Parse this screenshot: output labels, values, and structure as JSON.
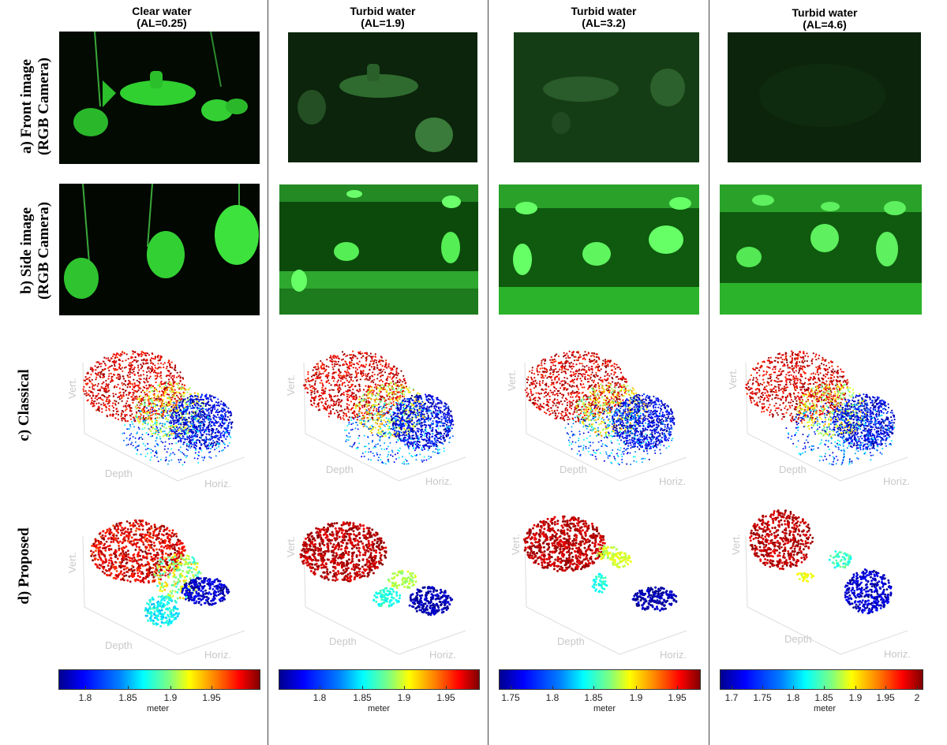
{
  "columns": [
    {
      "title": "Clear water",
      "al": "(AL=0.25)",
      "ticks": [
        "1.8",
        "1.85",
        "1.9",
        "1.95"
      ],
      "cbar_unit": "meter"
    },
    {
      "title": "Turbid water",
      "al": "(AL=1.9)",
      "ticks": [
        "1.8",
        "1.85",
        "1.9",
        "1.95"
      ],
      "cbar_unit": "meter"
    },
    {
      "title": "Turbid water",
      "al": "(AL=3.2)",
      "ticks": [
        "1.75",
        "1.8",
        "1.85",
        "1.9",
        "1.95"
      ],
      "cbar_unit": "meter"
    },
    {
      "title": "Turbid water",
      "al": "(AL=4.6)",
      "ticks": [
        "1.7",
        "1.75",
        "1.8",
        "1.85",
        "1.9",
        "1.95",
        "2"
      ],
      "cbar_unit": "meter"
    }
  ],
  "rows": {
    "a": {
      "line1": "a) Front image",
      "line2": "(RGB Camera)"
    },
    "b": {
      "line1": "b) Side image",
      "line2": "(RGB Camera)"
    },
    "c": {
      "line1": "c) Classical"
    },
    "d": {
      "line1": "d) Proposed"
    }
  },
  "axis_labels": {
    "vert": "Vert.",
    "depth": "Depth",
    "horiz": "Horiz."
  },
  "colors": {
    "photo_green": "#2ee82e",
    "separator": "#444444",
    "axis_label": "#c8c8c8"
  }
}
